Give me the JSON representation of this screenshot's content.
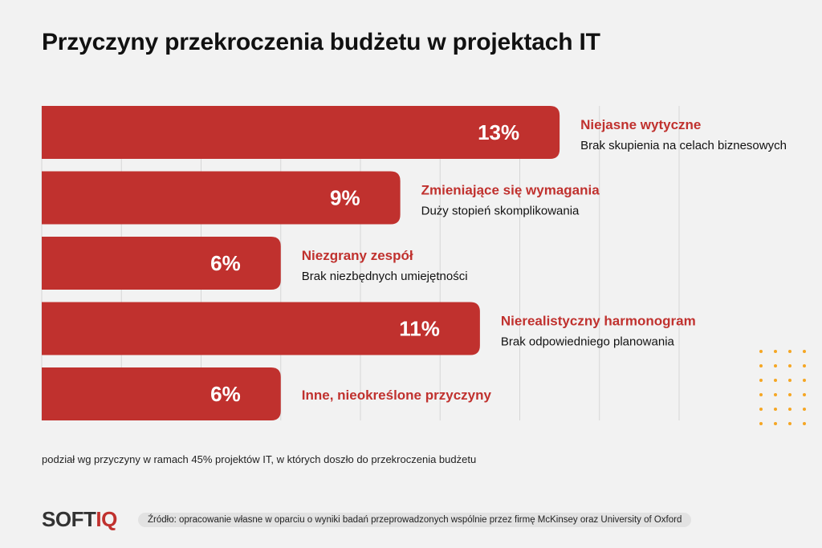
{
  "chart_data": {
    "type": "bar",
    "orientation": "horizontal",
    "title": "Przyczyny przekroczenia budżetu w projektach IT",
    "categories": [
      "Niejasne wytyczne",
      "Zmieniające się wymagania",
      "Niezgrany zespół",
      "Nierealistyczny harmonogram",
      "Inne, nieokreślone przyczyny"
    ],
    "subtitles": [
      "Brak skupienia na celach biznesowych",
      "Duży stopień skomplikowania",
      "Brak niezbędnych umiejętności",
      "Brak odpowiedniego planowania",
      ""
    ],
    "values": [
      13,
      9,
      6,
      11,
      6
    ],
    "value_labels": [
      "13%",
      "9%",
      "6%",
      "11%",
      "6%"
    ],
    "unit": "%",
    "xlim": [
      0,
      16
    ],
    "grid": true,
    "bar_color": "#c0312e",
    "category_color": "#c0312e",
    "subtitle_color": "#111111"
  },
  "note": "podział wg przyczyny w ramach 45% projektów IT, w których doszło do przekroczenia budżetu",
  "logo": {
    "part1": "SOFT",
    "part2": "IQ",
    "accent": "#c0312e"
  },
  "source": "Źródło: opracowanie własne w oparciu o wyniki badań przeprowadzonych wspólnie przez firmę McKinsey oraz University of Oxford",
  "decor": {
    "dot_color": "#f5a623"
  }
}
